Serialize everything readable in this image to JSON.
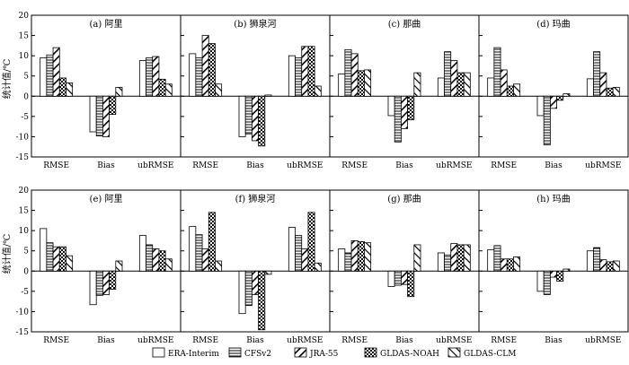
{
  "figure": {
    "ylabel": "统计值/℃",
    "metrics": [
      "RMSE",
      "Bias",
      "ubRMSE"
    ],
    "yticks": [
      -15,
      -10,
      -5,
      0,
      5,
      10,
      15,
      20
    ],
    "legend": [
      {
        "name": "ERA-Interim",
        "pattern": "blank"
      },
      {
        "name": "CFSv2",
        "pattern": "hlines"
      },
      {
        "name": "JRA-55",
        "pattern": "diagbold"
      },
      {
        "name": "GLDAS-NOAH",
        "pattern": "checker"
      },
      {
        "name": "GLDAS-CLM",
        "pattern": "backdiag"
      }
    ]
  },
  "chart_data": [
    {
      "type": "bar",
      "title": "(a) 阿里",
      "categories": [
        "RMSE",
        "Bias",
        "ubRMSE"
      ],
      "ylim": [
        -15,
        20
      ],
      "series": [
        {
          "name": "ERA-Interim",
          "values": [
            9.5,
            -8.8,
            8.8
          ]
        },
        {
          "name": "CFSv2",
          "values": [
            10.2,
            -9.8,
            9.5
          ]
        },
        {
          "name": "JRA-55",
          "values": [
            12.0,
            -10.0,
            9.8
          ]
        },
        {
          "name": "GLDAS-NOAH",
          "values": [
            4.5,
            -4.5,
            4.2
          ]
        },
        {
          "name": "GLDAS-CLM",
          "values": [
            3.3,
            2.2,
            3.0
          ]
        }
      ]
    },
    {
      "type": "bar",
      "title": "(b) 狮泉河",
      "categories": [
        "RMSE",
        "Bias",
        "ubRMSE"
      ],
      "ylim": [
        -15,
        20
      ],
      "series": [
        {
          "name": "ERA-Interim",
          "values": [
            10.5,
            -10.0,
            10.0
          ]
        },
        {
          "name": "CFSv2",
          "values": [
            9.5,
            -9.3,
            9.5
          ]
        },
        {
          "name": "JRA-55",
          "values": [
            15.0,
            -11.0,
            12.3
          ]
        },
        {
          "name": "GLDAS-NOAH",
          "values": [
            13.0,
            -12.3,
            12.3
          ]
        },
        {
          "name": "GLDAS-CLM",
          "values": [
            3.0,
            0.3,
            2.5
          ]
        }
      ]
    },
    {
      "type": "bar",
      "title": "(c) 那曲",
      "categories": [
        "RMSE",
        "Bias",
        "ubRMSE"
      ],
      "ylim": [
        -15,
        20
      ],
      "series": [
        {
          "name": "ERA-Interim",
          "values": [
            5.5,
            -4.8,
            4.5
          ]
        },
        {
          "name": "CFSv2",
          "values": [
            11.5,
            -11.3,
            11.0
          ]
        },
        {
          "name": "JRA-55",
          "values": [
            10.5,
            -8.0,
            8.8
          ]
        },
        {
          "name": "GLDAS-NOAH",
          "values": [
            6.3,
            -5.8,
            5.8
          ]
        },
        {
          "name": "GLDAS-CLM",
          "values": [
            6.5,
            5.8,
            5.8
          ]
        }
      ]
    },
    {
      "type": "bar",
      "title": "(d) 玛曲",
      "categories": [
        "RMSE",
        "Bias",
        "ubRMSE"
      ],
      "ylim": [
        -15,
        20
      ],
      "series": [
        {
          "name": "ERA-Interim",
          "values": [
            4.5,
            -4.8,
            4.3
          ]
        },
        {
          "name": "CFSv2",
          "values": [
            12.0,
            -12.0,
            11.0
          ]
        },
        {
          "name": "JRA-55",
          "values": [
            6.5,
            -3.0,
            5.8
          ]
        },
        {
          "name": "GLDAS-NOAH",
          "values": [
            2.5,
            -1.0,
            2.0
          ]
        },
        {
          "name": "GLDAS-CLM",
          "values": [
            3.0,
            0.6,
            2.2
          ]
        }
      ]
    },
    {
      "type": "bar",
      "title": "(e) 阿里",
      "categories": [
        "RMSE",
        "Bias",
        "ubRMSE"
      ],
      "ylim": [
        -15,
        20
      ],
      "series": [
        {
          "name": "ERA-Interim",
          "values": [
            10.5,
            -8.3,
            8.8
          ]
        },
        {
          "name": "CFSv2",
          "values": [
            7.0,
            -6.0,
            6.5
          ]
        },
        {
          "name": "JRA-55",
          "values": [
            6.0,
            -5.8,
            5.5
          ]
        },
        {
          "name": "GLDAS-NOAH",
          "values": [
            6.0,
            -4.5,
            5.0
          ]
        },
        {
          "name": "GLDAS-CLM",
          "values": [
            3.8,
            2.5,
            3.0
          ]
        }
      ]
    },
    {
      "type": "bar",
      "title": "(f) 狮泉河",
      "categories": [
        "RMSE",
        "Bias",
        "ubRMSE"
      ],
      "ylim": [
        -15,
        20
      ],
      "series": [
        {
          "name": "ERA-Interim",
          "values": [
            11.0,
            -10.5,
            10.8
          ]
        },
        {
          "name": "CFSv2",
          "values": [
            9.0,
            -8.5,
            8.8
          ]
        },
        {
          "name": "JRA-55",
          "values": [
            5.5,
            -5.8,
            5.5
          ]
        },
        {
          "name": "GLDAS-NOAH",
          "values": [
            14.5,
            -14.5,
            14.5
          ]
        },
        {
          "name": "GLDAS-CLM",
          "values": [
            2.5,
            -0.8,
            2.0
          ]
        }
      ]
    },
    {
      "type": "bar",
      "title": "(g) 那曲",
      "categories": [
        "RMSE",
        "Bias",
        "ubRMSE"
      ],
      "ylim": [
        -15,
        20
      ],
      "series": [
        {
          "name": "ERA-Interim",
          "values": [
            5.5,
            -3.8,
            4.5
          ]
        },
        {
          "name": "CFSv2",
          "values": [
            4.5,
            -3.5,
            4.0
          ]
        },
        {
          "name": "JRA-55",
          "values": [
            7.5,
            -3.3,
            6.8
          ]
        },
        {
          "name": "GLDAS-NOAH",
          "values": [
            7.3,
            -6.3,
            6.5
          ]
        },
        {
          "name": "GLDAS-CLM",
          "values": [
            7.0,
            6.5,
            6.5
          ]
        }
      ]
    },
    {
      "type": "bar",
      "title": "(h) 玛曲",
      "categories": [
        "RMSE",
        "Bias",
        "ubRMSE"
      ],
      "ylim": [
        -15,
        20
      ],
      "series": [
        {
          "name": "ERA-Interim",
          "values": [
            5.3,
            -5.0,
            5.0
          ]
        },
        {
          "name": "CFSv2",
          "values": [
            6.3,
            -5.8,
            5.8
          ]
        },
        {
          "name": "JRA-55",
          "values": [
            3.0,
            -1.5,
            2.8
          ]
        },
        {
          "name": "GLDAS-NOAH",
          "values": [
            3.0,
            -2.5,
            2.3
          ]
        },
        {
          "name": "GLDAS-CLM",
          "values": [
            3.5,
            0.5,
            2.5
          ]
        }
      ]
    }
  ]
}
